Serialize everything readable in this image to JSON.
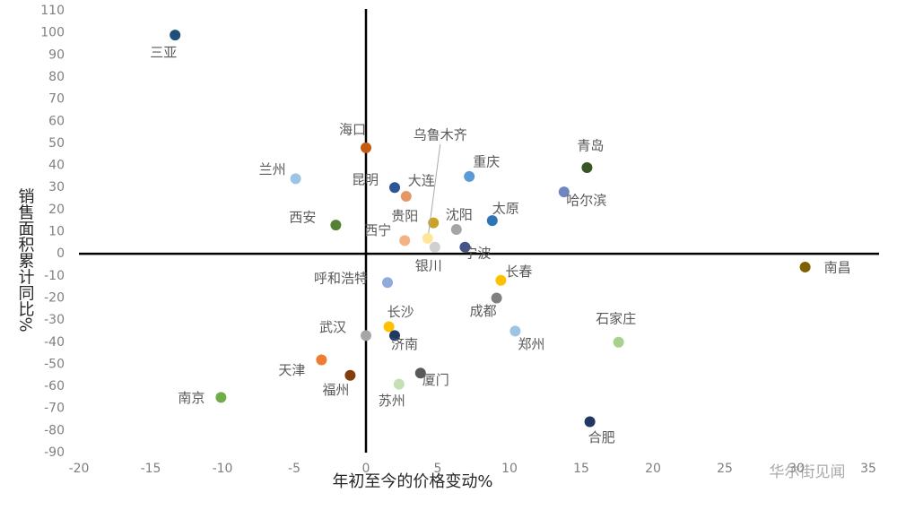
{
  "chart_data": {
    "type": "scatter",
    "xlabel": "年初至今的价格变动%",
    "ylabel": "销售面积累计同比%",
    "watermark": "华尔街见闻",
    "xlim": [
      -20,
      35
    ],
    "xticks": [
      -20,
      -15,
      -10,
      -5,
      0,
      5,
      10,
      15,
      20,
      25,
      30,
      35
    ],
    "ylim": [
      -90,
      110
    ],
    "yticks": [
      -90,
      -80,
      -70,
      -60,
      -50,
      -40,
      -30,
      -20,
      -10,
      0,
      10,
      20,
      30,
      40,
      50,
      60,
      70,
      80,
      90,
      100,
      110
    ],
    "points": [
      {
        "label": "三亚",
        "x": -13.3,
        "y": 99,
        "color": "#1f4e79"
      },
      {
        "label": "海口",
        "x": 0,
        "y": 48,
        "color": "#c55a11"
      },
      {
        "label": "兰州",
        "x": -4.9,
        "y": 34,
        "color": "#9dc3e6"
      },
      {
        "label": "昆明",
        "x": 2.0,
        "y": 30,
        "color": "#2e5597"
      },
      {
        "label": "大连",
        "x": 2.8,
        "y": 26,
        "color": "#e59866"
      },
      {
        "label": "重庆",
        "x": 7.2,
        "y": 35,
        "color": "#5b9bd5"
      },
      {
        "label": "青岛",
        "x": 15.4,
        "y": 39,
        "color": "#375623"
      },
      {
        "label": "哈尔滨",
        "x": 13.8,
        "y": 28,
        "color": "#6f86c0"
      },
      {
        "label": "西安",
        "x": -2.1,
        "y": 13,
        "color": "#548235"
      },
      {
        "label": "贵阳",
        "x": 4.7,
        "y": 14,
        "color": "#c9a227"
      },
      {
        "label": "沈阳",
        "x": 6.3,
        "y": 11,
        "color": "#a5a5a5"
      },
      {
        "label": "太原",
        "x": 8.8,
        "y": 15,
        "color": "#2e75b6"
      },
      {
        "label": "西宁",
        "x": 2.7,
        "y": 6,
        "color": "#f4b183"
      },
      {
        "label": "乌鲁木齐",
        "x": 4.3,
        "y": 7,
        "color": "#ffe699"
      },
      {
        "label": "银川",
        "x": 4.8,
        "y": 3,
        "color": "#d0d0d0"
      },
      {
        "label": "宁波",
        "x": 6.9,
        "y": 3,
        "color": "#44548a"
      },
      {
        "label": "南昌",
        "x": 30.6,
        "y": -6,
        "color": "#7f6000"
      },
      {
        "label": "呼和浩特",
        "x": 1.5,
        "y": -13,
        "color": "#8faadc"
      },
      {
        "label": "长春",
        "x": 9.4,
        "y": -12,
        "color": "#ffc000"
      },
      {
        "label": "成都",
        "x": 9.1,
        "y": -20,
        "color": "#7f7f7f"
      },
      {
        "label": "长沙",
        "x": 1.6,
        "y": -33,
        "color": "#ffc000"
      },
      {
        "label": "武汉",
        "x": 0,
        "y": -37,
        "color": "#a6a6a6"
      },
      {
        "label": "济南",
        "x": 2.0,
        "y": -37,
        "color": "#203864"
      },
      {
        "label": "郑州",
        "x": 10.4,
        "y": -35,
        "color": "#9dc3e6"
      },
      {
        "label": "石家庄",
        "x": 17.6,
        "y": -40,
        "color": "#a9d18e"
      },
      {
        "label": "天津",
        "x": -3.1,
        "y": -48,
        "color": "#ed7d31"
      },
      {
        "label": "福州",
        "x": -1.1,
        "y": -55,
        "color": "#843c0c"
      },
      {
        "label": "厦门",
        "x": 3.8,
        "y": -54,
        "color": "#595959"
      },
      {
        "label": "苏州",
        "x": 2.3,
        "y": -59,
        "color": "#c5e0b4"
      },
      {
        "label": "南京",
        "x": -10.1,
        "y": -65,
        "color": "#70ad47"
      },
      {
        "label": "合肥",
        "x": 15.6,
        "y": -76,
        "color": "#1f3864"
      }
    ]
  }
}
